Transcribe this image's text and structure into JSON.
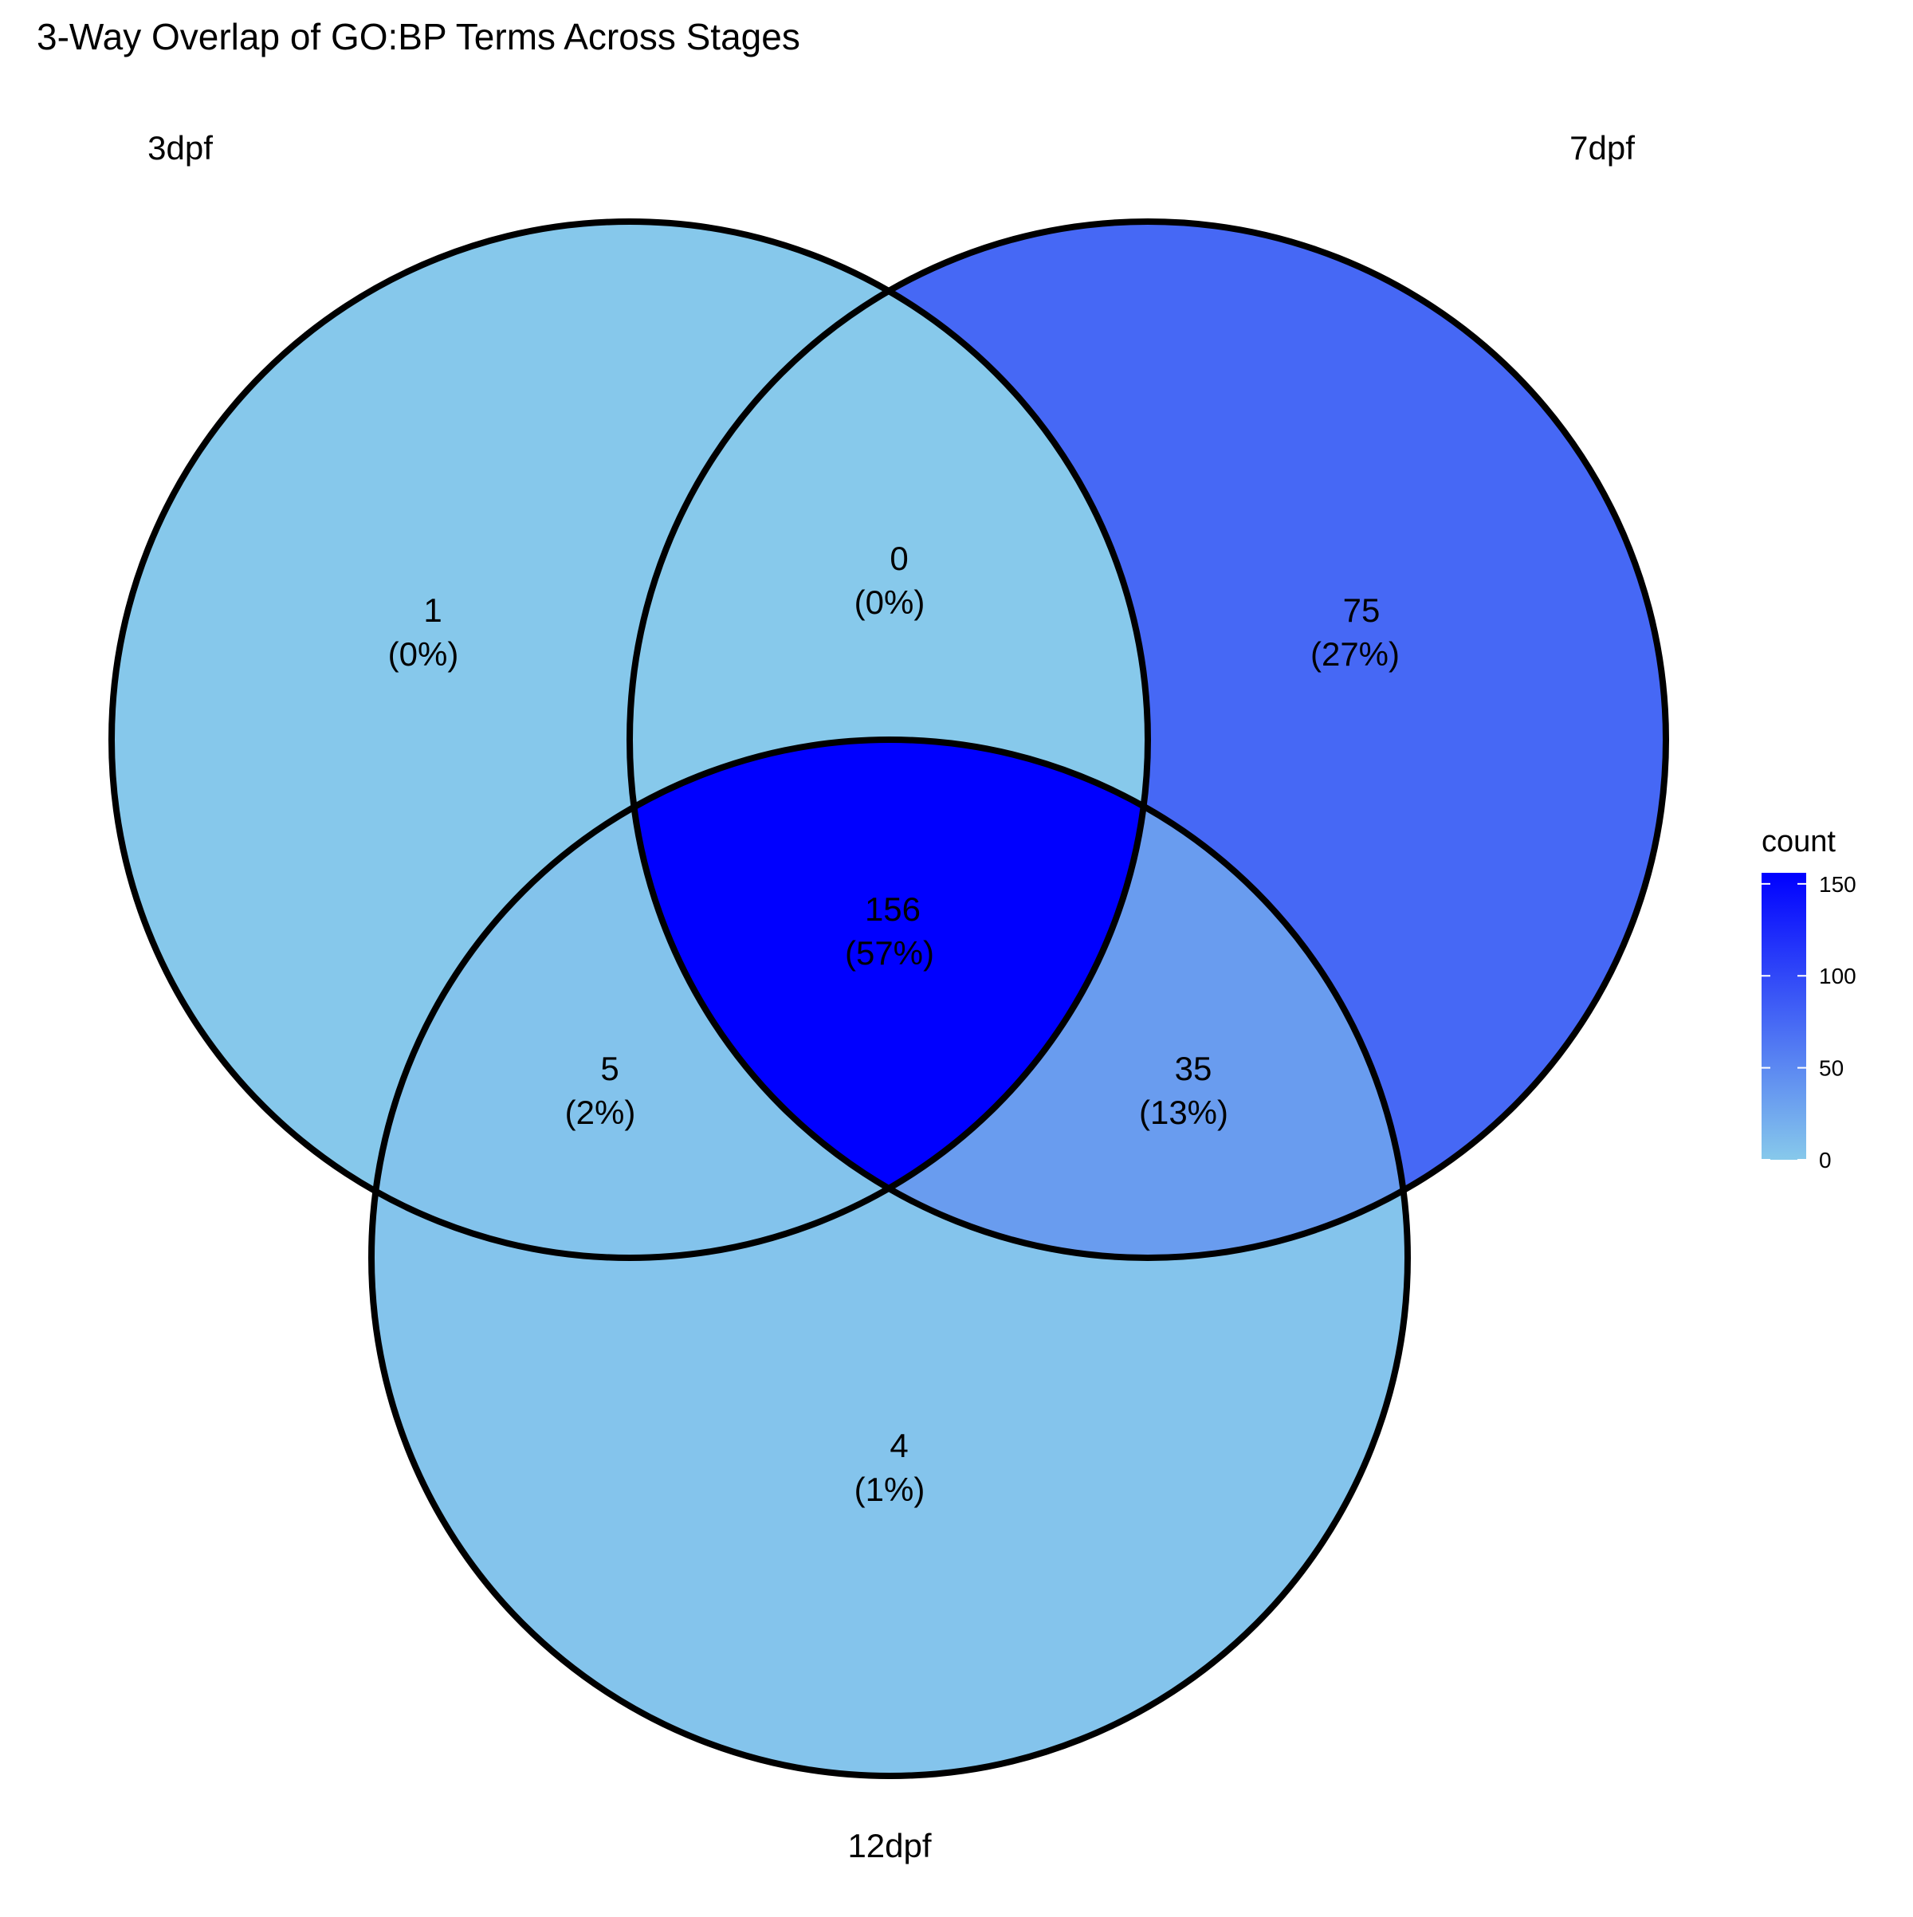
{
  "title": "3-Way Overlap of GO:BP Terms Across Stages",
  "sets": [
    "3dpf",
    "7dpf",
    "12dpf"
  ],
  "colors": {
    "low": "#87c9eb",
    "high": "#0000ff",
    "outline": "#000000"
  },
  "chart_data": {
    "type": "venn",
    "title": "3-Way Overlap of GO:BP Terms Across Stages",
    "sets": [
      "3dpf",
      "7dpf",
      "12dpf"
    ],
    "regions": [
      {
        "sets": [
          "3dpf"
        ],
        "count": "1",
        "percent": "(0%)"
      },
      {
        "sets": [
          "7dpf"
        ],
        "count": "75",
        "percent": "(27%)"
      },
      {
        "sets": [
          "12dpf"
        ],
        "count": "4",
        "percent": "(1%)"
      },
      {
        "sets": [
          "3dpf",
          "7dpf"
        ],
        "count": "0",
        "percent": "(0%)"
      },
      {
        "sets": [
          "3dpf",
          "12dpf"
        ],
        "count": "5",
        "percent": "(2%)"
      },
      {
        "sets": [
          "7dpf",
          "12dpf"
        ],
        "count": "35",
        "percent": "(13%)"
      },
      {
        "sets": [
          "3dpf",
          "7dpf",
          "12dpf"
        ],
        "count": "156",
        "percent": "(57%)"
      }
    ],
    "legend": {
      "title": "count",
      "ticks": [
        "0",
        "50",
        "100",
        "150"
      ],
      "range": [
        0,
        156
      ]
    }
  }
}
